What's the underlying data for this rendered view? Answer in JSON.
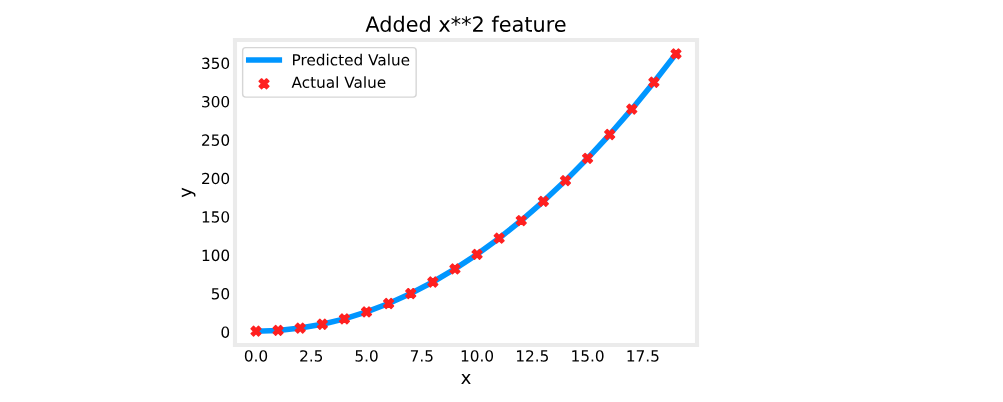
{
  "chart_data": {
    "type": "line",
    "title": "Added x**2 feature",
    "xlabel": "x",
    "ylabel": "y",
    "x": [
      0,
      1,
      2,
      3,
      4,
      5,
      6,
      7,
      8,
      9,
      10,
      11,
      12,
      13,
      14,
      15,
      16,
      17,
      18,
      19
    ],
    "series": [
      {
        "name": "Predicted Value",
        "color": "#0096ff",
        "marker": "none",
        "values": [
          1,
          2,
          5,
          10,
          17,
          26,
          37,
          50,
          65,
          82,
          101,
          122,
          145,
          170,
          197,
          226,
          257,
          290,
          325,
          362
        ]
      },
      {
        "name": "Actual Value",
        "type": "scatter",
        "color": "#ff2020",
        "marker": "cross",
        "values": [
          1,
          2,
          5,
          10,
          17,
          26,
          37,
          50,
          65,
          82,
          101,
          122,
          145,
          170,
          197,
          226,
          257,
          290,
          325,
          362
        ]
      }
    ],
    "xlim": [
      -0.95,
      19.95
    ],
    "xticks": [
      {
        "value": 0,
        "label": "0.0"
      },
      {
        "value": 2.5,
        "label": "2.5"
      },
      {
        "value": 5,
        "label": "5.0"
      },
      {
        "value": 7.5,
        "label": "7.5"
      },
      {
        "value": 10,
        "label": "10.0"
      },
      {
        "value": 12.5,
        "label": "12.5"
      },
      {
        "value": 15,
        "label": "15.0"
      },
      {
        "value": 17.5,
        "label": "17.5"
      }
    ],
    "ylim": [
      -17,
      380
    ],
    "yticks": [
      0,
      50,
      100,
      150,
      200,
      250,
      300,
      350
    ],
    "grid": false,
    "legend": "top left"
  }
}
